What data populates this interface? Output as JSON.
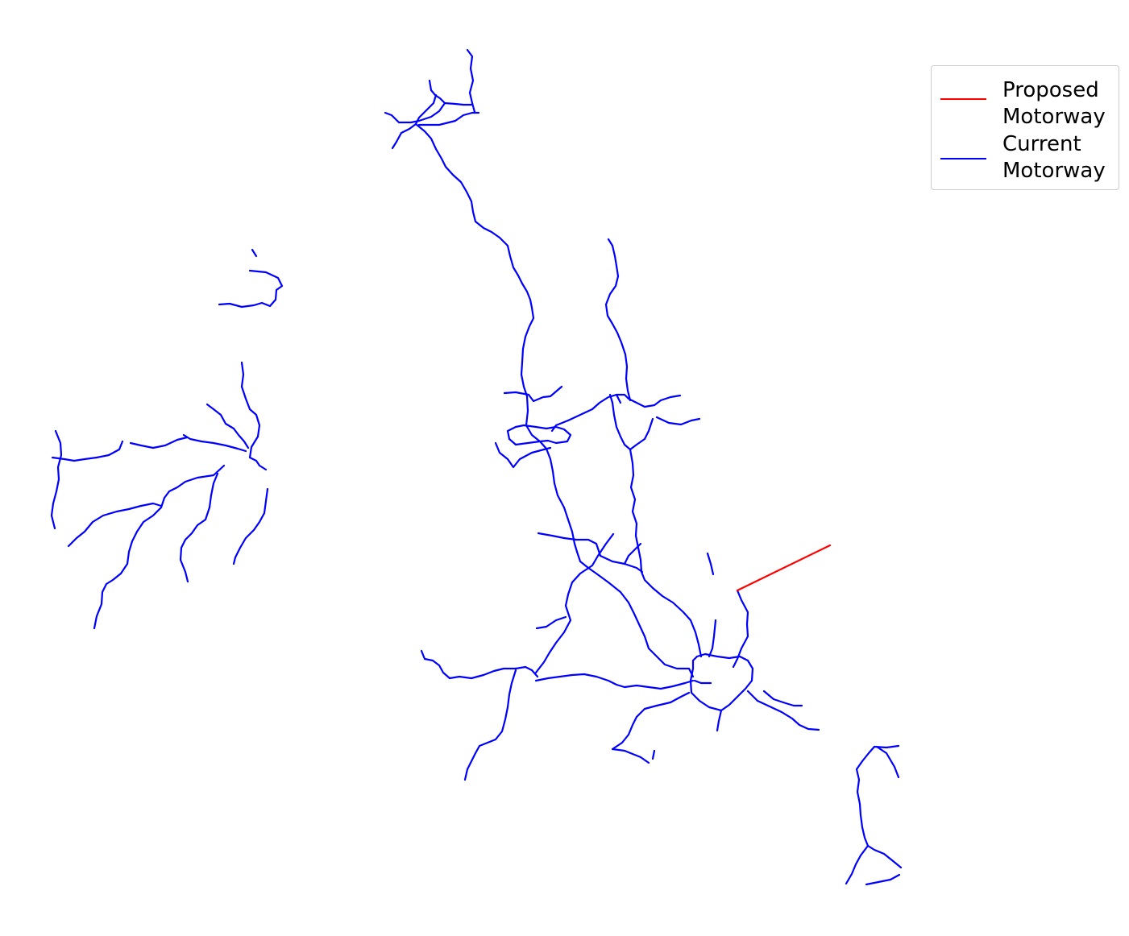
{
  "colors": {
    "proposed": "#ff0000",
    "current": "#0000ff",
    "background": "#ffffff"
  },
  "legend": {
    "proposed_label": "Proposed\nMotorway",
    "current_label": "Current\nMotorway"
  }
}
